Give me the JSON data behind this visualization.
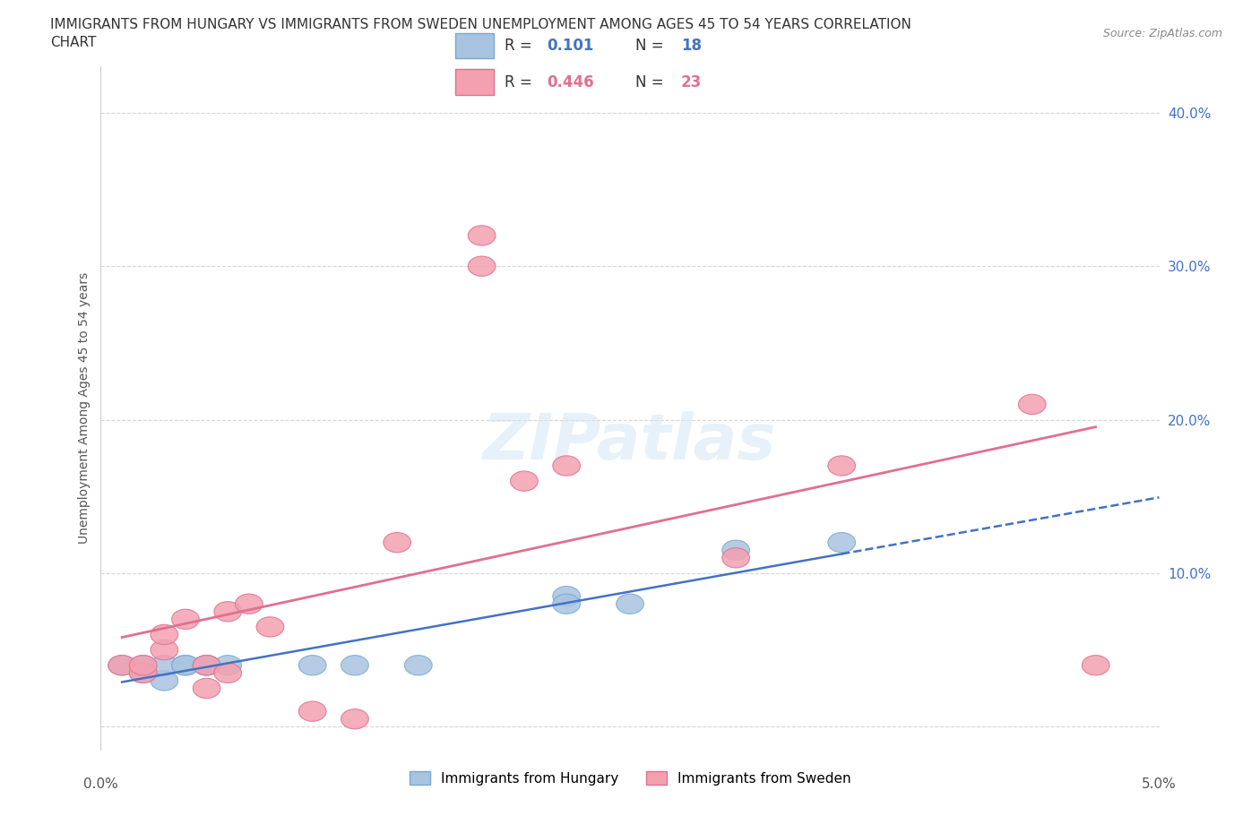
{
  "title_line1": "IMMIGRANTS FROM HUNGARY VS IMMIGRANTS FROM SWEDEN UNEMPLOYMENT AMONG AGES 45 TO 54 YEARS CORRELATION",
  "title_line2": "CHART",
  "source": "Source: ZipAtlas.com",
  "ylabel": "Unemployment Among Ages 45 to 54 years",
  "xlim": [
    0.0,
    0.05
  ],
  "ylim": [
    -0.015,
    0.43
  ],
  "ytick_vals": [
    0.0,
    0.1,
    0.2,
    0.3,
    0.4
  ],
  "ytick_labels": [
    "",
    "10.0%",
    "20.0%",
    "30.0%",
    "40.0%"
  ],
  "hungary_R": 0.101,
  "hungary_N": 18,
  "sweden_R": 0.446,
  "sweden_N": 23,
  "hungary_color": "#a8c4e0",
  "sweden_color": "#f4a0b0",
  "hungary_line_color": "#4472c4",
  "sweden_line_color": "#e07090",
  "legend_hungary_label": "Immigrants from Hungary",
  "legend_sweden_label": "Immigrants from Sweden",
  "hungary_x": [
    0.001,
    0.002,
    0.002,
    0.003,
    0.003,
    0.004,
    0.004,
    0.005,
    0.005,
    0.006,
    0.01,
    0.012,
    0.015,
    0.022,
    0.022,
    0.025,
    0.03,
    0.035
  ],
  "hungary_y": [
    0.04,
    0.035,
    0.04,
    0.03,
    0.04,
    0.04,
    0.04,
    0.04,
    0.04,
    0.04,
    0.04,
    0.04,
    0.04,
    0.085,
    0.08,
    0.08,
    0.115,
    0.12
  ],
  "sweden_x": [
    0.001,
    0.002,
    0.002,
    0.003,
    0.003,
    0.004,
    0.005,
    0.005,
    0.006,
    0.006,
    0.007,
    0.008,
    0.01,
    0.012,
    0.014,
    0.018,
    0.018,
    0.02,
    0.022,
    0.03,
    0.035,
    0.044,
    0.047
  ],
  "sweden_y": [
    0.04,
    0.035,
    0.04,
    0.05,
    0.06,
    0.07,
    0.04,
    0.025,
    0.035,
    0.075,
    0.08,
    0.065,
    0.01,
    0.005,
    0.12,
    0.32,
    0.3,
    0.16,
    0.17,
    0.11,
    0.17,
    0.21,
    0.04
  ],
  "background_color": "#ffffff",
  "grid_color": "#cccccc"
}
